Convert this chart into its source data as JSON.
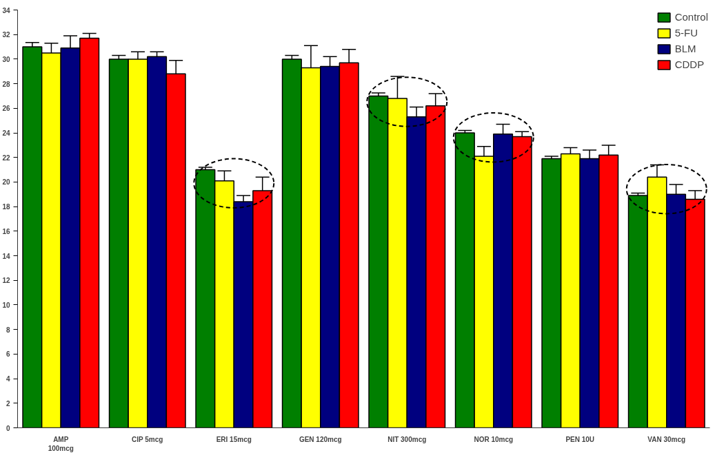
{
  "chart_data": {
    "type": "bar",
    "categories": [
      "AMP\n100mcg",
      "CIP 5mcg",
      "ERI 15mcg",
      "GEN 120mcg",
      "NIT 300mcg",
      "NOR 10mcg",
      "PEN 10U",
      "VAN 30mcg"
    ],
    "series": [
      {
        "name": "Control",
        "color": "#007f00",
        "values": [
          31,
          30,
          21,
          30,
          27,
          24,
          21.9,
          18.9
        ],
        "errors": [
          0.35,
          0.3,
          0.2,
          0.3,
          0.25,
          0.2,
          0.2,
          0.2
        ]
      },
      {
        "name": "5-FU",
        "color": "#ffff00",
        "values": [
          30.5,
          30,
          20.1,
          29.3,
          26.8,
          22.1,
          22.3,
          20.4
        ],
        "errors": [
          0.8,
          0.6,
          0.8,
          1.8,
          1.8,
          0.8,
          0.5,
          1.0
        ]
      },
      {
        "name": "BLM",
        "color": "#00007f",
        "values": [
          30.9,
          30.2,
          18.4,
          29.4,
          25.3,
          23.9,
          21.9,
          19
        ],
        "errors": [
          1.0,
          0.4,
          0.5,
          0.8,
          0.8,
          0.8,
          0.7,
          0.8
        ]
      },
      {
        "name": "CDDP",
        "color": "#ff0000",
        "values": [
          31.7,
          28.8,
          19.3,
          29.7,
          26.2,
          23.7,
          22.2,
          18.6
        ],
        "errors": [
          0.4,
          1.1,
          1.1,
          1.1,
          1.0,
          0.4,
          0.8,
          0.7
        ]
      }
    ],
    "ylim": [
      0,
      34
    ],
    "yticks": [
      0,
      2,
      4,
      6,
      8,
      10,
      12,
      14,
      16,
      18,
      20,
      22,
      24,
      26,
      28,
      30,
      32,
      34
    ],
    "grid": false,
    "legend": "top right"
  }
}
